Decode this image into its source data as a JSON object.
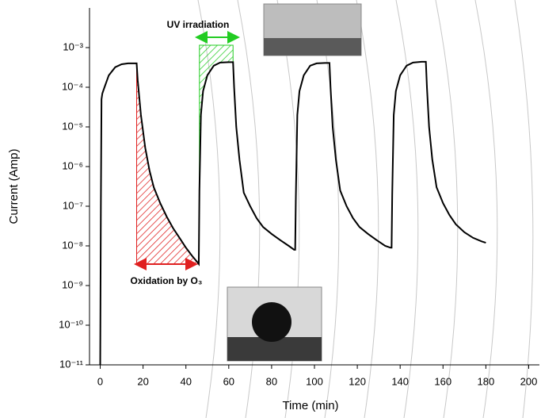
{
  "chart_data": {
    "type": "line",
    "x_label": "Time (min)",
    "y_label": "Current (Amp)",
    "log_y": true,
    "grid": false,
    "xlim": [
      -5,
      205
    ],
    "xticks": [
      0,
      20,
      40,
      60,
      80,
      100,
      120,
      140,
      160,
      180,
      200
    ],
    "ylim": [
      1e-11,
      0.01
    ],
    "yticks": [
      {
        "value": 1e-11,
        "label": "10⁻¹¹"
      },
      {
        "value": 1e-10,
        "label": "10⁻¹⁰"
      },
      {
        "value": 1e-09,
        "label": "10⁻⁹"
      },
      {
        "value": 1e-08,
        "label": "10⁻⁸"
      },
      {
        "value": 1e-07,
        "label": "10⁻⁷"
      },
      {
        "value": 1e-06,
        "label": "10⁻⁶"
      },
      {
        "value": 1e-05,
        "label": "10⁻⁵"
      },
      {
        "value": 0.0001,
        "label": "10⁻⁴"
      },
      {
        "value": 0.001,
        "label": "10⁻³"
      }
    ],
    "annotations": [
      "UV irradiation",
      "Oxidation by O₃"
    ],
    "x": [
      0,
      0.3,
      0.6,
      1,
      2,
      4,
      7,
      10,
      13,
      17,
      17.5,
      19,
      21,
      23,
      25,
      28,
      31,
      34,
      37,
      40,
      43,
      45.5,
      46,
      46.3,
      47,
      48,
      50,
      53,
      56,
      60,
      62,
      62.5,
      63.5,
      65,
      67,
      70,
      73,
      76,
      80,
      84,
      88,
      90.5,
      91,
      91.3,
      92,
      93,
      95,
      98,
      101,
      105,
      107,
      107.5,
      108.5,
      110,
      112,
      115,
      118,
      121,
      125,
      129,
      133,
      135.5,
      136,
      136.3,
      137,
      138,
      140,
      143,
      146,
      150,
      152,
      152.5,
      153.5,
      155,
      157,
      160,
      163,
      166,
      170,
      174,
      178,
      180
    ],
    "series": [
      {
        "color": "#000000",
        "values": [
          1e-11,
          1e-07,
          5e-05,
          7e-05,
          0.0001,
          0.0002,
          0.00032,
          0.00038,
          0.0004,
          0.0004,
          0.00015,
          2e-05,
          3e-06,
          8e-07,
          3e-07,
          1.2e-07,
          5.5e-08,
          2.8e-08,
          1.6e-08,
          9e-09,
          5.5e-09,
          3.8e-09,
          3.5e-09,
          2.5e-07,
          2e-05,
          8e-05,
          0.0002,
          0.00035,
          0.00042,
          0.00043,
          0.00043,
          0.0001,
          1e-05,
          1.5e-06,
          2.2e-07,
          1e-07,
          5e-08,
          3e-08,
          2e-08,
          1.4e-08,
          1e-08,
          8e-09,
          8e-09,
          1.5e-07,
          2e-05,
          8e-05,
          0.0002,
          0.00035,
          0.0004,
          0.00041,
          0.00041,
          0.0001,
          1e-05,
          1.5e-06,
          2.5e-07,
          1e-07,
          5e-08,
          3e-08,
          2e-08,
          1.4e-08,
          1e-08,
          9e-09,
          9e-09,
          2e-07,
          2e-05,
          8e-05,
          0.0002,
          0.00035,
          0.00042,
          0.00044,
          0.00044,
          0.0001,
          1e-05,
          1.5e-06,
          3e-07,
          1.2e-07,
          6e-08,
          3.5e-08,
          2.2e-08,
          1.6e-08,
          1.3e-08,
          1.2e-08
        ]
      }
    ]
  }
}
